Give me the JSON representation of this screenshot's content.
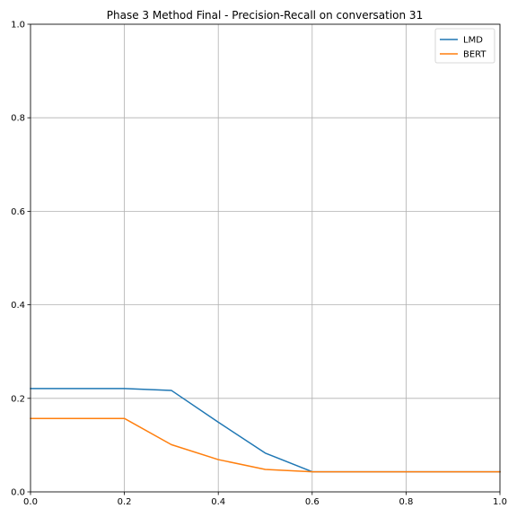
{
  "chart_data": {
    "type": "line",
    "title": "Phase 3 Method Final - Precision-Recall on conversation 31",
    "xlabel": "",
    "ylabel": "",
    "xlim": [
      0,
      1
    ],
    "ylim": [
      0,
      1
    ],
    "grid": true,
    "legend": "top-right",
    "xticks": [
      0.0,
      0.2,
      0.4,
      0.6,
      0.8,
      1.0
    ],
    "yticks": [
      0.0,
      0.2,
      0.4,
      0.6,
      0.8,
      1.0
    ],
    "xtick_labels": [
      "0.0",
      "0.2",
      "0.4",
      "0.6",
      "0.8",
      "1.0"
    ],
    "ytick_labels": [
      "0.0",
      "0.2",
      "0.4",
      "0.6",
      "0.8",
      "1.0"
    ],
    "x": [
      0.0,
      0.1,
      0.2,
      0.3,
      0.4,
      0.5,
      0.6,
      0.7,
      0.8,
      0.9,
      1.0
    ],
    "series": [
      {
        "name": "LMD",
        "color": "#1f77b4",
        "values": [
          0.221,
          0.221,
          0.221,
          0.217,
          0.149,
          0.083,
          0.043,
          0.043,
          0.043,
          0.043,
          0.043
        ]
      },
      {
        "name": "BERT",
        "color": "#ff7f0e",
        "values": [
          0.157,
          0.157,
          0.157,
          0.101,
          0.069,
          0.048,
          0.043,
          0.043,
          0.043,
          0.043,
          0.043
        ]
      }
    ]
  }
}
